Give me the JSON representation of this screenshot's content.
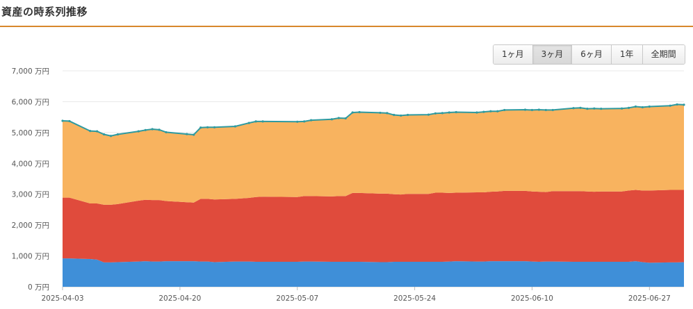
{
  "page": {
    "title": "資産の時系列推移"
  },
  "range_buttons": [
    {
      "label": "1ヶ月"
    },
    {
      "label": "3ヶ月",
      "active": true
    },
    {
      "label": "6ヶ月"
    },
    {
      "label": "1年"
    },
    {
      "label": "全期間"
    }
  ],
  "colors": {
    "accent": "#d8872b",
    "line": "#2e9aa0",
    "bottom": "#3f8fd8",
    "middle": "#e04b3c",
    "top": "#f8b35f"
  },
  "chart_data": {
    "type": "area",
    "stacked": true,
    "title": "",
    "xlabel": "",
    "ylabel": "",
    "ylim": [
      0,
      7000
    ],
    "y_ticks": [
      0,
      1000,
      2000,
      3000,
      4000,
      5000,
      6000,
      7000
    ],
    "y_tick_labels": [
      "0 万円",
      "1,000 万円",
      "2,000 万円",
      "3,000 万円",
      "4,000 万円",
      "5,000 万円",
      "6,000 万円",
      "7,000 万円"
    ],
    "x_tick_labels": [
      "2025-04-03",
      "2025-04-20",
      "2025-05-07",
      "2025-05-24",
      "2025-06-10",
      "2025-06-27"
    ],
    "grid": true,
    "legend": "none",
    "x": [
      "2025-04-03",
      "2025-04-04",
      "2025-04-07",
      "2025-04-08",
      "2025-04-09",
      "2025-04-10",
      "2025-04-11",
      "2025-04-14",
      "2025-04-15",
      "2025-04-16",
      "2025-04-17",
      "2025-04-18",
      "2025-04-21",
      "2025-04-22",
      "2025-04-23",
      "2025-04-24",
      "2025-04-25",
      "2025-04-28",
      "2025-04-30",
      "2025-05-01",
      "2025-05-02",
      "2025-05-07",
      "2025-05-08",
      "2025-05-09",
      "2025-05-12",
      "2025-05-13",
      "2025-05-14",
      "2025-05-15",
      "2025-05-16",
      "2025-05-19",
      "2025-05-20",
      "2025-05-21",
      "2025-05-22",
      "2025-05-23",
      "2025-05-26",
      "2025-05-27",
      "2025-05-28",
      "2025-05-29",
      "2025-05-30",
      "2025-06-02",
      "2025-06-03",
      "2025-06-04",
      "2025-06-05",
      "2025-06-06",
      "2025-06-09",
      "2025-06-10",
      "2025-06-11",
      "2025-06-12",
      "2025-06-13",
      "2025-06-16",
      "2025-06-17",
      "2025-06-18",
      "2025-06-19",
      "2025-06-20",
      "2025-06-23",
      "2025-06-24",
      "2025-06-25",
      "2025-06-26",
      "2025-06-27",
      "2025-06-30",
      "2025-07-01",
      "2025-07-02"
    ],
    "series": [
      {
        "values": [
          920,
          920,
          900,
          880,
          790,
          790,
          800,
          820,
          830,
          820,
          820,
          830,
          830,
          830,
          820,
          820,
          800,
          820,
          820,
          810,
          810,
          810,
          820,
          820,
          810,
          810,
          810,
          810,
          810,
          800,
          800,
          810,
          810,
          810,
          810,
          810,
          810,
          820,
          830,
          820,
          820,
          830,
          830,
          830,
          830,
          820,
          810,
          820,
          820,
          810,
          810,
          810,
          810,
          810,
          810,
          810,
          830,
          800,
          780,
          790,
          790,
          800
        ]
      },
      {
        "values": [
          1970,
          1970,
          1800,
          1820,
          1870,
          1870,
          1880,
          1970,
          1990,
          1990,
          1990,
          1950,
          1910,
          1900,
          2030,
          2030,
          2030,
          2030,
          2060,
          2100,
          2110,
          2100,
          2120,
          2120,
          2120,
          2130,
          2130,
          2230,
          2230,
          2220,
          2220,
          2190,
          2180,
          2200,
          2200,
          2240,
          2240,
          2220,
          2220,
          2240,
          2240,
          2250,
          2260,
          2280,
          2280,
          2270,
          2270,
          2250,
          2280,
          2290,
          2290,
          2280,
          2270,
          2280,
          2280,
          2310,
          2310,
          2320,
          2340,
          2350,
          2350,
          2340
        ]
      },
      {
        "values": [
          2490,
          2480,
          2350,
          2340,
          2280,
          2230,
          2260,
          2250,
          2260,
          2300,
          2280,
          2230,
          2210,
          2200,
          2310,
          2320,
          2340,
          2350,
          2430,
          2450,
          2440,
          2440,
          2420,
          2460,
          2500,
          2530,
          2520,
          2610,
          2620,
          2620,
          2610,
          2570,
          2560,
          2560,
          2570,
          2570,
          2580,
          2610,
          2610,
          2590,
          2610,
          2610,
          2600,
          2620,
          2630,
          2640,
          2660,
          2660,
          2630,
          2690,
          2700,
          2680,
          2700,
          2680,
          2690,
          2680,
          2700,
          2700,
          2720,
          2730,
          2770,
          2760
        ]
      }
    ]
  }
}
